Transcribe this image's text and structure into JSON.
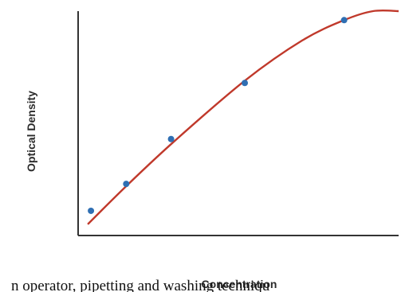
{
  "chart_data": {
    "type": "line",
    "title": "",
    "xlabel": "Concentration",
    "ylabel": "Optical Density",
    "xlim": [
      0,
      10
    ],
    "ylim": [
      0,
      10
    ],
    "grid": false,
    "legend": "none",
    "points": [
      {
        "x": 0.4,
        "y": 1.1
      },
      {
        "x": 1.5,
        "y": 2.3
      },
      {
        "x": 2.9,
        "y": 4.3
      },
      {
        "x": 5.2,
        "y": 6.8
      },
      {
        "x": 8.3,
        "y": 9.6
      }
    ],
    "fit_curve": [
      {
        "x": 0.3,
        "y": 0.5
      },
      {
        "x": 1.5,
        "y": 2.2
      },
      {
        "x": 3.0,
        "y": 4.2
      },
      {
        "x": 5.2,
        "y": 6.9
      },
      {
        "x": 7.0,
        "y": 8.7
      },
      {
        "x": 8.3,
        "y": 9.6
      },
      {
        "x": 9.2,
        "y": 10.0
      },
      {
        "x": 10.0,
        "y": 10.0
      }
    ],
    "colors": {
      "curve": "#c0392b",
      "points": "#2f6fb3",
      "axis": "#333333"
    }
  },
  "footer": {
    "text": "n operator, pipetting and washing techniqu"
  }
}
